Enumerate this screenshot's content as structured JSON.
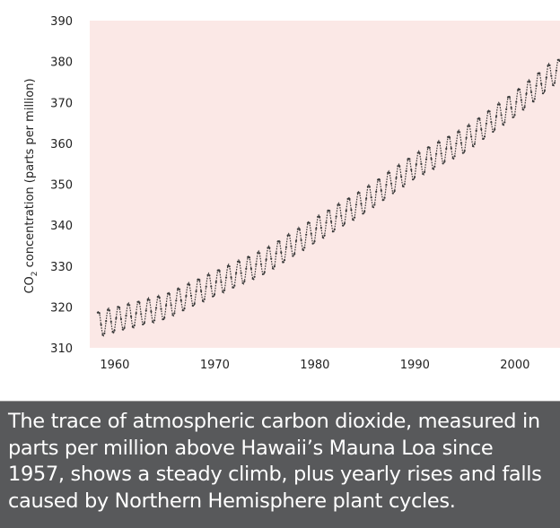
{
  "chart_data": {
    "type": "line",
    "ylabel_prefix": "CO",
    "ylabel_subscript": "2",
    "ylabel_suffix": " concentration (parts per million)",
    "xlabel": "",
    "xlim": [
      1957.5,
      2004.5
    ],
    "ylim": [
      310,
      390
    ],
    "x_ticks": [
      1960,
      1970,
      1980,
      1990,
      2000
    ],
    "y_ticks": [
      310,
      320,
      330,
      340,
      350,
      360,
      370,
      380,
      390
    ],
    "grid": false,
    "legend": "none",
    "colors": {
      "plot_background": "#fbe8e6",
      "series": "#3a3a3a"
    },
    "series": [
      {
        "data_start_year": 1958.3,
        "data_end_year": 2004.5,
        "trend_points": [
          [
            1958,
            315.5
          ],
          [
            1960,
            316.9
          ],
          [
            1965,
            320.0
          ],
          [
            1970,
            325.7
          ],
          [
            1975,
            331.1
          ],
          [
            1980,
            338.7
          ],
          [
            1985,
            346.0
          ],
          [
            1990,
            354.4
          ],
          [
            1995,
            360.8
          ],
          [
            2000,
            369.6
          ],
          [
            2004,
            377.5
          ]
        ],
        "seasonal_amplitude": 3.2
      }
    ]
  },
  "caption": {
    "text": "The trace of atmospheric carbon dioxide, measured in parts per million above Hawaii’s Mauna Loa since 1957, shows a steady climb, plus yearly rises and falls caused by Northern Hemisphere plant cycles."
  }
}
